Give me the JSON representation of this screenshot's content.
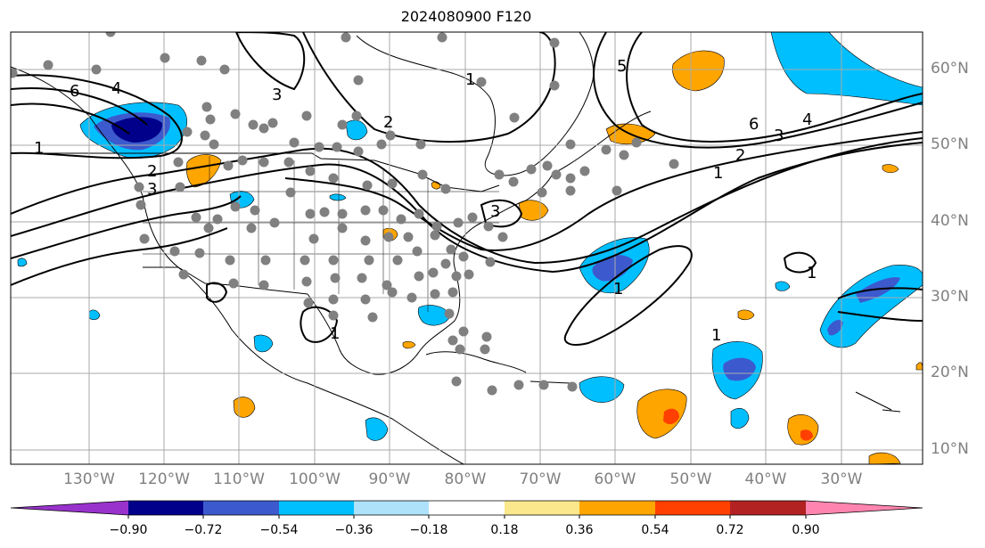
{
  "title": "2024080900 F120",
  "latitude_labels": [
    "60°N",
    "50°N",
    "40°N",
    "30°N",
    "20°N",
    "10°N"
  ],
  "longitude_labels": [
    "130°W",
    "120°W",
    "110°W",
    "100°W",
    "90°W",
    "80°W",
    "70°W",
    "60°W",
    "50°W",
    "40°W",
    "30°W"
  ],
  "colorbar": {
    "tick_labels": [
      "−0.90",
      "−0.72",
      "−0.54",
      "−0.36",
      "−0.18",
      "0.18",
      "0.36",
      "0.54",
      "0.72",
      "0.90"
    ],
    "colors": [
      "#9932cc",
      "#00008b",
      "#3c5acd",
      "#00bfff",
      "#ade2fa",
      "#ffffff",
      "#fbe78c",
      "#ffa500",
      "#ff4000",
      "#b22222",
      "#ff85b0"
    ]
  },
  "contour_labels": [
    "1",
    "2",
    "3",
    "4",
    "5",
    "6"
  ],
  "colors": {
    "grid": "#aaaaaa",
    "coast": "#000000",
    "station": "#808080"
  }
}
